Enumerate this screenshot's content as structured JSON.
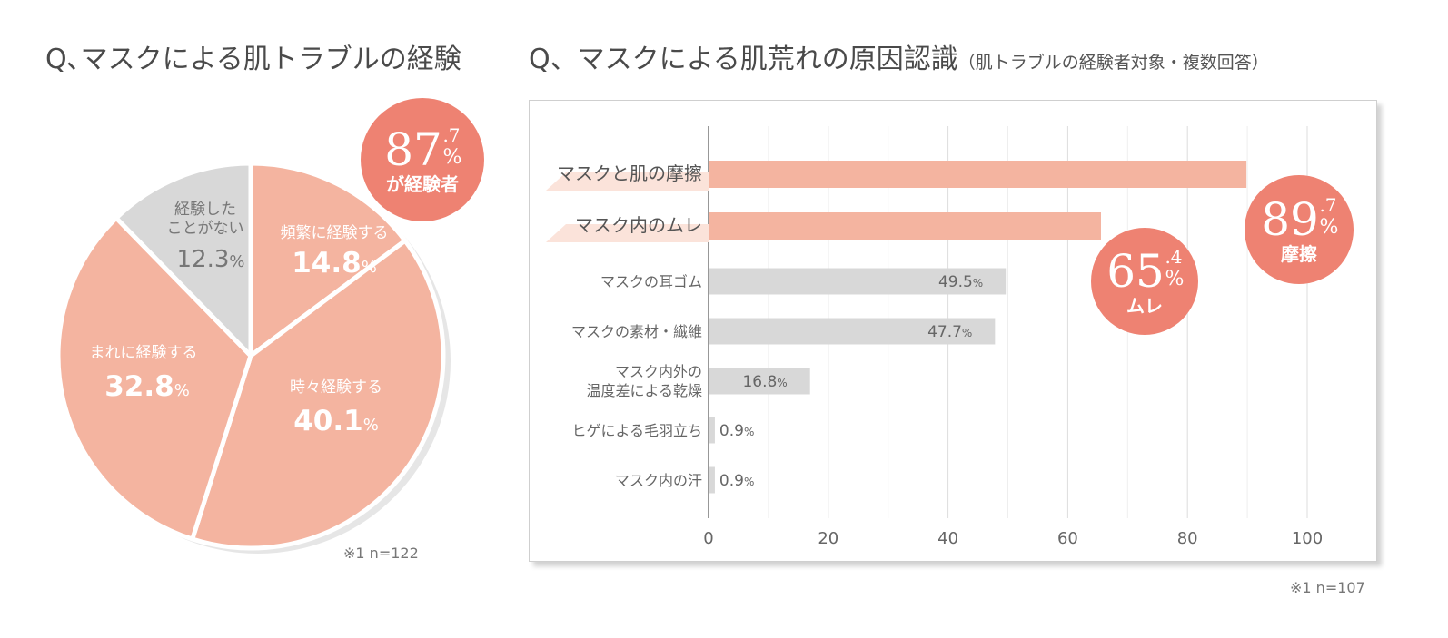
{
  "pie": {
    "title": "Q､マスクによる肌トラブルの経験",
    "note": "※1  n=122",
    "badge": {
      "big": "87",
      "small": ".7",
      "pct": "%",
      "label": "が経験者"
    }
  },
  "bar": {
    "title": "Q、マスクによる肌荒れの原因認識",
    "subtitle": "（肌トラブルの経験者対象・複数回答）",
    "note": "※1  n=107",
    "badges": [
      {
        "big": "89",
        "small": ".7",
        "pct": "%",
        "label": "摩擦"
      },
      {
        "big": "65",
        "small": ".4",
        "pct": "%",
        "label": "ムレ"
      }
    ]
  },
  "chart_data": [
    {
      "type": "pie",
      "slices": [
        {
          "label": "頻繁に経験する",
          "value": 14.8,
          "text": "14.8",
          "unit": "%",
          "color": "#f4b4a0"
        },
        {
          "label": "時々経験する",
          "value": 40.1,
          "text": "40.1",
          "unit": "%",
          "color": "#f4b4a0"
        },
        {
          "label": "まれに経験する",
          "value": 32.8,
          "text": "32.8",
          "unit": "%",
          "color": "#f4b4a0"
        },
        {
          "label": "経験した\nことがない",
          "value": 12.3,
          "text": "12.3",
          "unit": "%",
          "color": "#d8d8d8"
        }
      ]
    },
    {
      "type": "bar",
      "orientation": "horizontal",
      "categories": [
        "マスクと肌の摩擦",
        "マスク内のムレ",
        "マスクの耳ゴム",
        "マスクの素材・繊維",
        "マスク内外の\n温度差による乾燥",
        "ヒゲによる毛羽立ち",
        "マスク内の汗"
      ],
      "values": [
        89.7,
        65.4,
        49.5,
        47.7,
        16.8,
        0.9,
        0.9
      ],
      "value_labels": [
        "",
        "",
        "49.5",
        "47.7",
        "16.8",
        "0.9",
        "0.9"
      ],
      "highlight": [
        true,
        true,
        false,
        false,
        false,
        false,
        false
      ],
      "xlim": [
        0,
        100
      ],
      "xticks": [
        0,
        20,
        40,
        60,
        80,
        100
      ],
      "grid": true,
      "colors": {
        "highlight": "#f4b4a0",
        "normal": "#d8d8d8",
        "badge": "#ee8272"
      }
    }
  ]
}
